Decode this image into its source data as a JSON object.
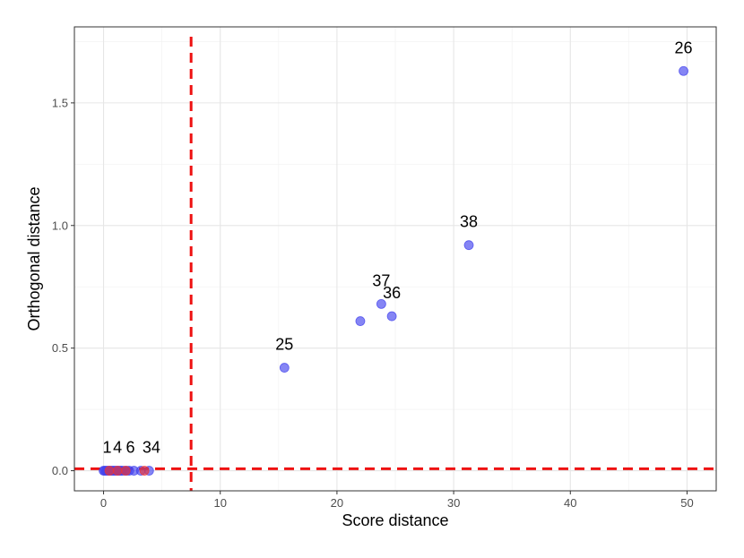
{
  "chart_data": {
    "type": "scatter",
    "xlabel": "Score distance",
    "ylabel": "Orthogonal distance",
    "xlim": [
      -2.5,
      52.5
    ],
    "ylim": [
      -0.082,
      1.81
    ],
    "x_ticks": [
      0,
      10,
      20,
      30,
      40,
      50
    ],
    "y_ticks": [
      0.0,
      0.5,
      1.0,
      1.5
    ],
    "x_tick_labels": [
      "0",
      "10",
      "20",
      "30",
      "40",
      "50"
    ],
    "y_tick_labels": [
      "0.0",
      "0.5",
      "1.0",
      "1.5"
    ],
    "grid": true,
    "cutoffs": {
      "x": 7.5,
      "y": 0.008,
      "color": "#ee1111"
    },
    "point_colors": {
      "regular": "#4444ee",
      "flagged": "#ee3333"
    },
    "points": [
      {
        "x": 49.7,
        "y": 1.63,
        "label": "26",
        "group": "regular"
      },
      {
        "x": 31.3,
        "y": 0.92,
        "label": "38",
        "group": "regular"
      },
      {
        "x": 23.8,
        "y": 0.68,
        "label": "37",
        "group": "regular"
      },
      {
        "x": 22.0,
        "y": 0.61,
        "label": "",
        "group": "regular"
      },
      {
        "x": 24.7,
        "y": 0.63,
        "label": "36",
        "group": "regular"
      },
      {
        "x": 15.5,
        "y": 0.42,
        "label": "25",
        "group": "regular"
      },
      {
        "x": 0.0,
        "y": 0.0,
        "label": "",
        "group": "regular"
      },
      {
        "x": 0.1,
        "y": 0.0,
        "label": "",
        "group": "regular"
      },
      {
        "x": 0.2,
        "y": 0.0,
        "label": "",
        "group": "regular"
      },
      {
        "x": 0.3,
        "y": 0.0,
        "label": "",
        "group": "regular"
      },
      {
        "x": 0.4,
        "y": 0.0,
        "label": "",
        "group": "regular"
      },
      {
        "x": 0.5,
        "y": 0.0,
        "label": "",
        "group": "regular"
      },
      {
        "x": 0.6,
        "y": 0.0,
        "label": "",
        "group": "regular"
      },
      {
        "x": 0.7,
        "y": 0.0,
        "label": "",
        "group": "regular"
      },
      {
        "x": 0.8,
        "y": 0.0,
        "label": "",
        "group": "regular"
      },
      {
        "x": 0.9,
        "y": 0.0,
        "label": "",
        "group": "regular"
      },
      {
        "x": 1.0,
        "y": 0.0,
        "label": "",
        "group": "regular"
      },
      {
        "x": 1.1,
        "y": 0.0,
        "label": "",
        "group": "regular"
      },
      {
        "x": 1.2,
        "y": 0.0,
        "label": "",
        "group": "regular"
      },
      {
        "x": 1.3,
        "y": 0.0,
        "label": "",
        "group": "regular"
      },
      {
        "x": 1.4,
        "y": 0.0,
        "label": "",
        "group": "regular"
      },
      {
        "x": 1.5,
        "y": 0.0,
        "label": "",
        "group": "regular"
      },
      {
        "x": 1.6,
        "y": 0.0,
        "label": "",
        "group": "regular"
      },
      {
        "x": 1.8,
        "y": 0.0,
        "label": "",
        "group": "regular"
      },
      {
        "x": 2.0,
        "y": 0.0,
        "label": "",
        "group": "regular"
      },
      {
        "x": 2.2,
        "y": 0.0,
        "label": "",
        "group": "regular"
      },
      {
        "x": 2.6,
        "y": 0.0,
        "label": "",
        "group": "regular"
      },
      {
        "x": 3.2,
        "y": 0.0,
        "label": "",
        "group": "regular"
      },
      {
        "x": 3.9,
        "y": 0.0,
        "label": "",
        "group": "regular"
      },
      {
        "x": 0.5,
        "y": 0.0,
        "label": "",
        "group": "flagged"
      },
      {
        "x": 1.2,
        "y": 0.0,
        "label": "",
        "group": "flagged"
      },
      {
        "x": 1.9,
        "y": 0.0,
        "label": "",
        "group": "flagged"
      },
      {
        "x": 3.5,
        "y": 0.0,
        "label": "",
        "group": "flagged"
      }
    ],
    "cluster_labels": [
      {
        "text": "1",
        "x": 0.3,
        "y": 0.0
      },
      {
        "text": "4",
        "x": 1.2,
        "y": 0.0
      },
      {
        "text": "6",
        "x": 2.3,
        "y": 0.0
      },
      {
        "text": "34",
        "x": 4.1,
        "y": 0.0
      }
    ]
  }
}
